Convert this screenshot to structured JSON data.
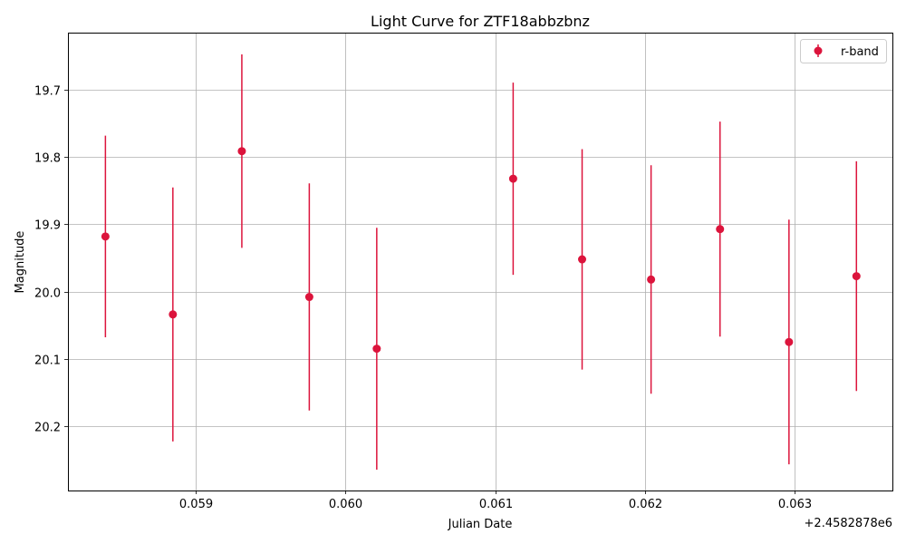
{
  "chart_data": {
    "type": "scatter",
    "title": "Light Curve for ZTF18abbzbnz",
    "xlabel": "Julian Date",
    "ylabel": "Magnitude",
    "x_offset_label": "+2.4582878e6",
    "x_tick_values": [
      0.059,
      0.06,
      0.061,
      0.062,
      0.063
    ],
    "x_tick_labels": [
      "0.059",
      "0.060",
      "0.061",
      "0.062",
      "0.063"
    ],
    "y_tick_values": [
      19.7,
      19.8,
      19.9,
      20.0,
      20.1,
      20.2
    ],
    "y_tick_labels": [
      "19.7",
      "19.8",
      "19.9",
      "20.0",
      "20.1",
      "20.2"
    ],
    "xlim": [
      0.05815,
      0.06365
    ],
    "ylim": [
      20.296,
      19.616
    ],
    "y_inverted": true,
    "grid": true,
    "legend_position": "top-right",
    "color": "#dc143c",
    "series": [
      {
        "name": "r-band",
        "x": [
          0.0584,
          0.05885,
          0.05931,
          0.05976,
          0.06021,
          0.06112,
          0.06158,
          0.06204,
          0.0625,
          0.06296,
          0.06341
        ],
        "y": [
          19.918,
          20.034,
          19.791,
          20.008,
          20.085,
          19.832,
          19.952,
          19.982,
          19.907,
          20.075,
          19.977
        ],
        "yerr": [
          0.15,
          0.189,
          0.144,
          0.169,
          0.18,
          0.143,
          0.164,
          0.17,
          0.16,
          0.182,
          0.171
        ]
      }
    ]
  }
}
